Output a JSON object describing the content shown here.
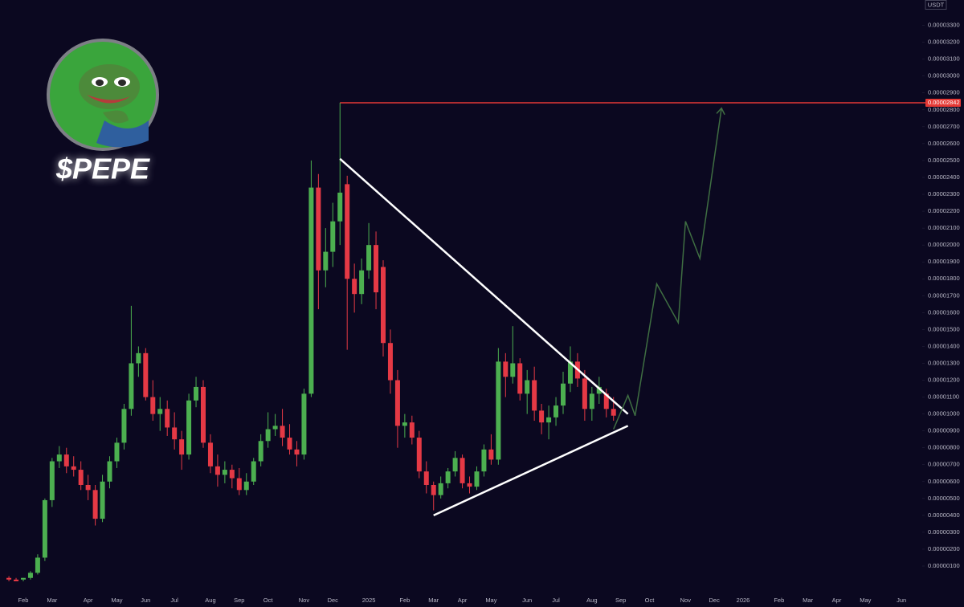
{
  "chart_data": {
    "type": "candlestick",
    "title": "$PEPE",
    "unit": "USDT",
    "up_color": "#4caf50",
    "down_color": "#e53945",
    "categories": [
      null,
      null,
      "Feb",
      null,
      null,
      null,
      "Mar",
      null,
      null,
      null,
      null,
      "Apr",
      null,
      null,
      null,
      "May",
      null,
      null,
      null,
      "Jun",
      null,
      null,
      null,
      "Jul",
      null,
      null,
      null,
      null,
      "Aug",
      null,
      null,
      null,
      "Sep",
      null,
      null,
      null,
      "Oct",
      null,
      null,
      null,
      null,
      "Nov",
      null,
      null,
      null,
      "Dec",
      null,
      null,
      null,
      null,
      "2025",
      null,
      null,
      null,
      null,
      "Feb",
      null,
      null,
      null,
      "Mar",
      null,
      null,
      null,
      "Apr",
      null,
      null,
      null,
      "May",
      null,
      null,
      null,
      null,
      "Jun",
      null,
      null,
      null,
      "Jul",
      null,
      null,
      null,
      null,
      "Aug",
      null,
      null,
      null,
      "Sep",
      null,
      null,
      null,
      "Oct",
      null,
      null,
      null,
      null,
      "Nov",
      null,
      null,
      null,
      "Dec",
      null,
      null,
      null,
      "2026",
      null,
      null,
      null,
      null,
      "Feb",
      null,
      null,
      null,
      "Mar",
      null,
      null,
      null,
      "Apr",
      null,
      null,
      null,
      "May",
      null,
      null,
      null,
      null,
      "Jun",
      null
    ],
    "open": [
      3e-07,
      2e-07,
      2e-07,
      3e-07,
      6e-07,
      1.5e-06,
      4.9e-06,
      7.2e-06,
      7.6e-06,
      6.9e-06,
      6.7e-06,
      5.8e-06,
      5.5e-06,
      3.8e-06,
      6e-06,
      7.2e-06,
      8.3e-06,
      1.03e-05,
      1.3e-05,
      1.36e-05,
      1.1e-05,
      1e-05,
      1.03e-05,
      9.2e-06,
      8.5e-06,
      7.6e-06,
      1.08e-05,
      1.16e-05,
      8.3e-06,
      6.9e-06,
      6.4e-06,
      6.7e-06,
      6.2e-06,
      5.5e-06,
      6e-06,
      7.2e-06,
      8.4e-06,
      9.1e-06,
      9.3e-06,
      8.6e-06,
      7.9e-06,
      7.6e-06,
      1.12e-05,
      2.34e-05,
      1.85e-05,
      1.96e-05,
      2.14e-05,
      2.36e-05,
      1.8e-05,
      1.71e-05,
      1.85e-05,
      2e-05,
      1.87e-05,
      1.42e-05,
      1.2e-05,
      9.3e-06,
      9.5e-06,
      8.6e-06,
      6.6e-06,
      5.8e-06,
      5.2e-06,
      5.9e-06,
      6.6e-06,
      7.4e-06,
      5.9e-06,
      5.7e-06,
      6.6e-06,
      7.9e-06,
      7.3e-06,
      1.31e-05,
      1.22e-05,
      1.3e-05,
      1.12e-05,
      1.2e-05,
      1.02e-05,
      9.5e-06,
      9.8e-06,
      1.05e-05,
      1.18e-05,
      1.31e-05,
      1.21e-05,
      1.03e-05,
      1.12e-05,
      1.12e-05,
      1.03e-05,
      null,
      null,
      null,
      null,
      null,
      null,
      null,
      null,
      null,
      null,
      null,
      null,
      null,
      null,
      null,
      null,
      null,
      null,
      null,
      null,
      null,
      null,
      null,
      null,
      null,
      null,
      null,
      null,
      null,
      null,
      null,
      null,
      null,
      null,
      null,
      null,
      null,
      null,
      null,
      null,
      null
    ],
    "high": [
      4e-07,
      3e-07,
      3e-07,
      7e-07,
      1.7e-06,
      5e-06,
      7.4e-06,
      8.1e-06,
      8e-06,
      7.5e-06,
      7.2e-06,
      6.4e-06,
      5.8e-06,
      6.4e-06,
      7.5e-06,
      8.6e-06,
      1.06e-05,
      1.64e-05,
      1.4e-05,
      1.39e-05,
      1.2e-05,
      1.1e-05,
      1.08e-05,
      1.01e-05,
      9e-06,
      1.12e-05,
      1.22e-05,
      1.2e-05,
      8.8e-06,
      7.6e-06,
      7.2e-06,
      7e-06,
      6.8e-06,
      6.5e-06,
      7.4e-06,
      8.8e-06,
      1.01e-05,
      1e-05,
      1.03e-05,
      9.4e-06,
      8.4e-06,
      1.15e-05,
      2.5e-05,
      2.42e-05,
      2.1e-05,
      2.25e-05,
      2.842e-05,
      2.41e-05,
      1.89e-05,
      1.92e-05,
      2.13e-05,
      2.08e-05,
      1.91e-05,
      1.5e-05,
      1.26e-05,
      1e-05,
      9.9e-06,
      9e-06,
      7.2e-06,
      6e-06,
      6.3e-06,
      6.8e-06,
      7.8e-06,
      7.6e-06,
      6.3e-06,
      6.9e-06,
      8.2e-06,
      8.8e-06,
      1.39e-05,
      1.36e-05,
      1.52e-05,
      1.33e-05,
      1.26e-05,
      1.28e-05,
      1.06e-05,
      1.05e-05,
      1.1e-05,
      1.25e-05,
      1.4e-05,
      1.36e-05,
      1.26e-05,
      1.16e-05,
      1.22e-05,
      1.15e-05,
      1.1e-05,
      null,
      null,
      null,
      null,
      null,
      null,
      null,
      null,
      null,
      null,
      null,
      null,
      null,
      null,
      null,
      null,
      null,
      null,
      null,
      null,
      null,
      null,
      null,
      null,
      null,
      null,
      null,
      null,
      null,
      null,
      null,
      null,
      null,
      null,
      null,
      null,
      null,
      null,
      null,
      null,
      null
    ],
    "low": [
      1e-07,
      1e-07,
      1e-07,
      2e-07,
      5e-07,
      1.3e-06,
      4.5e-06,
      6.8e-06,
      6.5e-06,
      6.3e-06,
      5.5e-06,
      4.9e-06,
      3.4e-06,
      3.6e-06,
      5.6e-06,
      6.8e-06,
      7.9e-06,
      9.9e-06,
      1.22e-05,
      1.08e-05,
      9.6e-06,
      9e-06,
      8.7e-06,
      7.9e-06,
      6.7e-06,
      7.3e-06,
      1.04e-05,
      8e-06,
      6.5e-06,
      5.7e-06,
      5.9e-06,
      5.6e-06,
      5.2e-06,
      5.2e-06,
      5.8e-06,
      6.9e-06,
      8e-06,
      8.7e-06,
      8.1e-06,
      7.6e-06,
      6.9e-06,
      7.3e-06,
      1.1e-05,
      1.62e-05,
      1.75e-05,
      1.87e-05,
      2e-05,
      1.38e-05,
      1.6e-05,
      1.65e-05,
      1.8e-05,
      1.62e-05,
      1.34e-05,
      1.12e-05,
      8e-06,
      8.6e-06,
      8.2e-06,
      6.2e-06,
      5.3e-06,
      4.3e-06,
      5e-06,
      5.6e-06,
      6.3e-06,
      5.6e-06,
      5.3e-06,
      5.5e-06,
      6.3e-06,
      7e-06,
      7e-06,
      1.1e-05,
      1.18e-05,
      1.08e-05,
      1e-05,
      9.6e-06,
      8.8e-06,
      8.5e-06,
      9.3e-06,
      1e-05,
      1.13e-05,
      1.16e-05,
      9.6e-06,
      9.6e-06,
      1.06e-05,
      9.8e-06,
      9.6e-06,
      null,
      null,
      null,
      null,
      null,
      null,
      null,
      null,
      null,
      null,
      null,
      null,
      null,
      null,
      null,
      null,
      null,
      null,
      null,
      null,
      null,
      null,
      null,
      null,
      null,
      null,
      null,
      null,
      null,
      null,
      null,
      null,
      null,
      null,
      null,
      null,
      null,
      null,
      null,
      null,
      null
    ],
    "close": [
      2e-07,
      1e-07,
      3e-07,
      6e-07,
      1.5e-06,
      4.9e-06,
      7.2e-06,
      7.6e-06,
      6.9e-06,
      6.7e-06,
      5.8e-06,
      5.5e-06,
      3.8e-06,
      6e-06,
      7.2e-06,
      8.3e-06,
      1.03e-05,
      1.3e-05,
      1.36e-05,
      1.1e-05,
      1e-05,
      1.03e-05,
      9.2e-06,
      8.5e-06,
      7.6e-06,
      1.08e-05,
      1.16e-05,
      8.3e-06,
      6.9e-06,
      6.4e-06,
      6.7e-06,
      6.2e-06,
      5.5e-06,
      6e-06,
      7.2e-06,
      8.4e-06,
      9.1e-06,
      9.3e-06,
      8.6e-06,
      7.9e-06,
      7.6e-06,
      1.12e-05,
      2.34e-05,
      1.85e-05,
      1.96e-05,
      2.14e-05,
      2.31e-05,
      1.8e-05,
      1.71e-05,
      1.85e-05,
      2e-05,
      1.72e-05,
      1.42e-05,
      1.2e-05,
      9.3e-06,
      9.5e-06,
      8.6e-06,
      6.6e-06,
      5.8e-06,
      5.2e-06,
      5.9e-06,
      6.6e-06,
      7.4e-06,
      5.9e-06,
      5.7e-06,
      6.6e-06,
      7.9e-06,
      7.3e-06,
      1.31e-05,
      1.22e-05,
      1.3e-05,
      1.12e-05,
      1.2e-05,
      1.02e-05,
      9.5e-06,
      9.8e-06,
      1.05e-05,
      1.18e-05,
      1.31e-05,
      1.21e-05,
      1.03e-05,
      1.12e-05,
      1.16e-05,
      1.03e-05,
      9.9e-06,
      null,
      null,
      null,
      null,
      null,
      null,
      null,
      null,
      null,
      null,
      null,
      null,
      null,
      null,
      null,
      null,
      null,
      null,
      null,
      null,
      null,
      null,
      null,
      null,
      null,
      null,
      null,
      null,
      null,
      null,
      null,
      null,
      null,
      null,
      null,
      null,
      null,
      null,
      null,
      null,
      null
    ],
    "lines": [
      {
        "color": "#ffffff",
        "x": [
          46,
          86
        ],
        "values": [
          2.51e-05,
          1e-05
        ]
      },
      {
        "color": "#ffffff",
        "x": [
          59,
          86
        ],
        "values": [
          4e-06,
          9.3e-06
        ]
      },
      {
        "color": "#3f6e42",
        "arrow": true,
        "x": [
          84,
          86,
          87,
          90,
          93,
          94,
          96,
          99
        ],
        "values": [
          9.1e-06,
          1.11e-05,
          9.9e-06,
          1.77e-05,
          1.54e-05,
          2.14e-05,
          1.92e-05,
          2.81e-05
        ]
      }
    ],
    "price_line": {
      "value": 2.842e-05,
      "label": "0.00002842",
      "color": "#e53935"
    },
    "ylim": [
      -9e-07,
      3.45e-05
    ],
    "yticks": [
      {
        "value": 1e-06,
        "label": "0.00000100"
      },
      {
        "value": 2e-06,
        "label": "0.00000200"
      },
      {
        "value": 3e-06,
        "label": "0.00000300"
      },
      {
        "value": 4e-06,
        "label": "0.00000400"
      },
      {
        "value": 5e-06,
        "label": "0.00000500"
      },
      {
        "value": 6e-06,
        "label": "0.00000600"
      },
      {
        "value": 7e-06,
        "label": "0.00000700"
      },
      {
        "value": 8e-06,
        "label": "0.00000800"
      },
      {
        "value": 9e-06,
        "label": "0.00000900"
      },
      {
        "value": 1e-05,
        "label": "0.00001000"
      },
      {
        "value": 1.1e-05,
        "label": "0.00001100"
      },
      {
        "value": 1.2e-05,
        "label": "0.00001200"
      },
      {
        "value": 1.3e-05,
        "label": "0.00001300"
      },
      {
        "value": 1.4e-05,
        "label": "0.00001400"
      },
      {
        "value": 1.5e-05,
        "label": "0.00001500"
      },
      {
        "value": 1.6e-05,
        "label": "0.00001600"
      },
      {
        "value": 1.7e-05,
        "label": "0.00001700"
      },
      {
        "value": 1.8e-05,
        "label": "0.00001800"
      },
      {
        "value": 1.9e-05,
        "label": "0.00001900"
      },
      {
        "value": 2e-05,
        "label": "0.00002000"
      },
      {
        "value": 2.1e-05,
        "label": "0.00002100"
      },
      {
        "value": 2.2e-05,
        "label": "0.00002200"
      },
      {
        "value": 2.3e-05,
        "label": "0.00002300"
      },
      {
        "value": 2.4e-05,
        "label": "0.00002400"
      },
      {
        "value": 2.5e-05,
        "label": "0.00002500"
      },
      {
        "value": 2.6e-05,
        "label": "0.00002600"
      },
      {
        "value": 2.7e-05,
        "label": "0.00002700"
      },
      {
        "value": 2.8e-05,
        "label": "0.00002800"
      },
      {
        "value": 2.9e-05,
        "label": "0.00002900"
      },
      {
        "value": 3e-05,
        "label": "0.00003000"
      },
      {
        "value": 3.1e-05,
        "label": "0.00003100"
      },
      {
        "value": 3.2e-05,
        "label": "0.00003200"
      },
      {
        "value": 3.3e-05,
        "label": "0.00003300"
      }
    ],
    "grid": false
  }
}
